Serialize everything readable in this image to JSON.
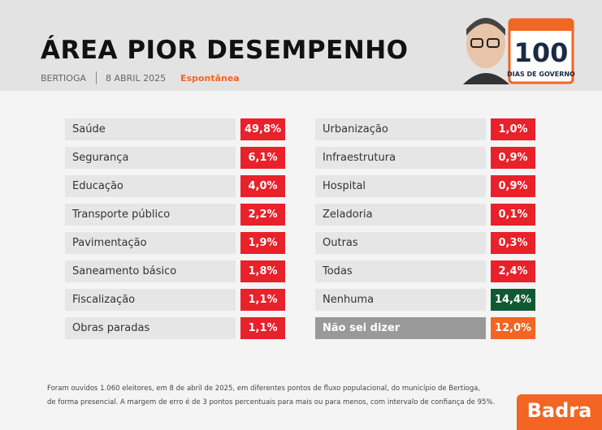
{
  "header": {
    "title": "ÁREA PIOR DESEMPENHO",
    "location": "BERTIOGA",
    "date": "8 ABRIL 2025",
    "tag": "Espontânea"
  },
  "badge": {
    "number": "100",
    "caption": "DIAS DE GOVERNO"
  },
  "table": {
    "left": [
      {
        "label": "Saúde",
        "value": "49,8%"
      },
      {
        "label": "Segurança",
        "value": "6,1%"
      },
      {
        "label": "Educação",
        "value": "4,0%"
      },
      {
        "label": "Transporte público",
        "value": "2,2%"
      },
      {
        "label": "Pavimentação",
        "value": "1,9%"
      },
      {
        "label": "Saneamento básico",
        "value": "1,8%"
      },
      {
        "label": "Fiscalização",
        "value": "1,1%"
      },
      {
        "label": "Obras paradas",
        "value": "1,1%"
      }
    ],
    "right": [
      {
        "label": "Urbanização",
        "value": "1,0%"
      },
      {
        "label": "Infraestrutura",
        "value": "0,9%"
      },
      {
        "label": "Hospital",
        "value": "0,9%"
      },
      {
        "label": "Zeladoria",
        "value": "0,1%"
      },
      {
        "label": "Outras",
        "value": "0,3%"
      },
      {
        "label": "Todas",
        "value": "2,4%"
      },
      {
        "label": "Nenhuma",
        "value": "14,4%"
      },
      {
        "label": "Não sei dizer",
        "value": "12,0%"
      }
    ]
  },
  "footer": {
    "lines": [
      "Foram ouvidos 1.060 eleitores, em 8 de abril de 2025, em diferentes pontos de fluxo populacional, do município de Bertioga,",
      "de forma presencial. A margem de erro é de 3 pontos percentuais para mais ou para menos, com intervalo de confiança de 95%."
    ]
  },
  "logo": "Badra"
}
